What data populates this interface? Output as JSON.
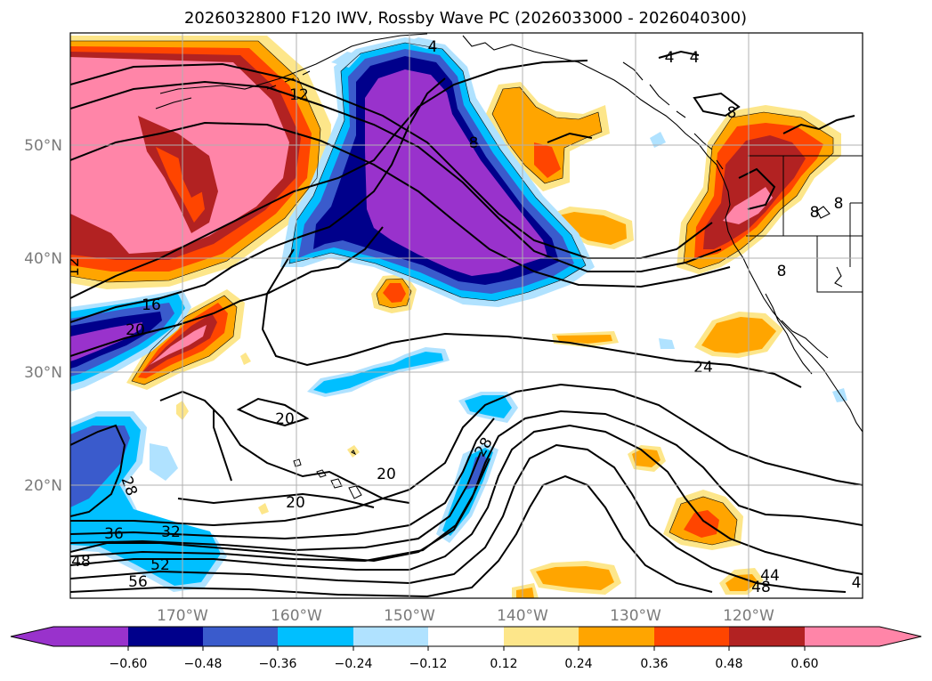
{
  "title": "2026032800 F120 IWV, Rossby Wave PC (2026033000 - 2026040300)",
  "map": {
    "lat_labels": [
      "50°N",
      "40°N",
      "30°N",
      "20°N"
    ],
    "lon_labels": [
      "170°W",
      "160°W",
      "150°W",
      "140°W",
      "130°W",
      "120°W"
    ],
    "grid_color": "#b0b0b0",
    "tick_label_color": "#7a7a7a"
  },
  "colorbar": {
    "tick_labels": [
      "−0.60",
      "−0.48",
      "−0.36",
      "−0.24",
      "−0.12",
      "0.12",
      "0.24",
      "0.36",
      "0.48",
      "0.60"
    ],
    "colors": [
      "#9932cc",
      "#00008b",
      "#3a5bcc",
      "#00bfff",
      "#b0e2ff",
      "#ffffff",
      "#fde68a",
      "#ffa500",
      "#ff4500",
      "#b22222",
      "#ff85a8"
    ]
  },
  "contour_labels": [
    "4",
    "4",
    "4",
    "8",
    "12",
    "8",
    "8",
    "8",
    "8",
    "12",
    "16",
    "20",
    "24",
    "20",
    "20",
    "20",
    "28",
    "28",
    "32",
    "36",
    "48",
    "52",
    "56",
    "44",
    "48",
    "4"
  ],
  "fill_colors": {
    "purple": "#9932cc",
    "navy": "#00008b",
    "blue": "#3a5bcc",
    "cyan": "#00bfff",
    "lightblue": "#b0e2ff",
    "yellow": "#fde68a",
    "orange": "#ffa500",
    "redorange": "#ff4500",
    "darkred": "#b22222",
    "pink": "#ff85a8"
  }
}
